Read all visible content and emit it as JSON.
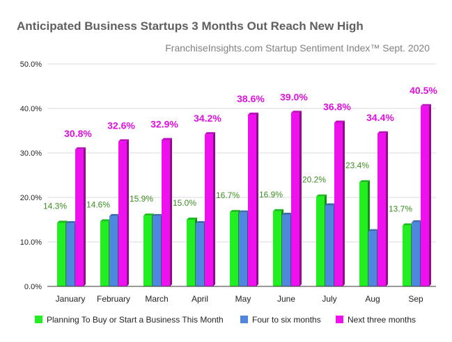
{
  "chart_data": {
    "type": "bar",
    "title": "Anticipated Business Startups 3 Months Out Reach New High",
    "subtitle": "FranchiseInsights.com Startup Sentiment Index™ Sept. 2020",
    "xlabel": "",
    "ylabel": "",
    "ylim": [
      0,
      50
    ],
    "yticks": [
      "0.0%",
      "10.0%",
      "20.0%",
      "30.0%",
      "40.0%",
      "50.0%"
    ],
    "grid": true,
    "legend_position": "bottom",
    "categories": [
      "January",
      "February",
      "March",
      "April",
      "May",
      "June",
      "July",
      "Aug",
      "Sep"
    ],
    "series": [
      {
        "name": "Planning To Buy or Start a Business This Month",
        "color": "#22ee22",
        "label_color": "#3b8f22",
        "values": [
          14.3,
          14.6,
          15.9,
          15.0,
          16.7,
          16.9,
          20.2,
          23.4,
          13.7
        ],
        "labels": [
          "14.3%",
          "14.6%",
          "15.9%",
          "15.0%",
          "16.7%",
          "16.9%",
          "20.2%",
          "23.4%",
          "13.7%"
        ]
      },
      {
        "name": "Four to six months",
        "color": "#4f86e0",
        "values": [
          14.2,
          15.8,
          15.8,
          14.2,
          16.6,
          16.1,
          18.2,
          12.4,
          14.4
        ]
      },
      {
        "name": "Next three months",
        "color": "#ee11ee",
        "label_color": "#e010e0",
        "values": [
          30.8,
          32.6,
          32.9,
          34.2,
          38.6,
          39.0,
          36.8,
          34.4,
          40.5
        ],
        "labels": [
          "30.8%",
          "32.6%",
          "32.9%",
          "34.2%",
          "38.6%",
          "39.0%",
          "36.8%",
          "34.4%",
          "40.5%"
        ]
      }
    ]
  }
}
